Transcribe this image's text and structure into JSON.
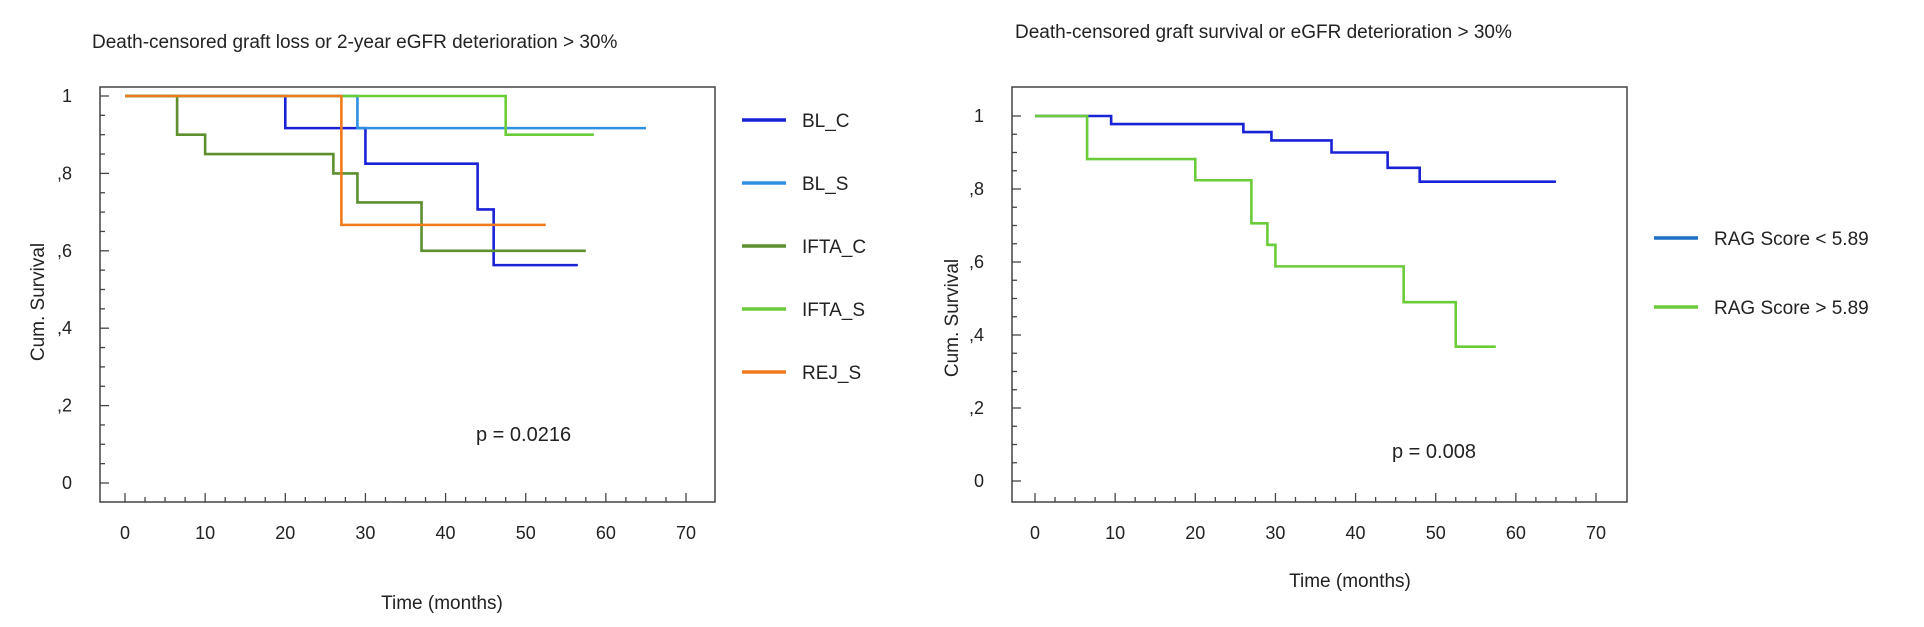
{
  "chart_data": [
    {
      "type": "line",
      "step": true,
      "title": "Death-censored graft loss or 2-year eGFR deterioration > 30%",
      "xlabel": "Time (months)",
      "ylabel": "Cum. Survival",
      "xlim": [
        0,
        70
      ],
      "ylim": [
        0,
        1
      ],
      "x_ticks": [
        0,
        10,
        20,
        30,
        40,
        50,
        60,
        70
      ],
      "x_tick_labels": [
        "0",
        "10",
        "20",
        "30",
        "40",
        "50",
        "60",
        "70"
      ],
      "y_ticks": [
        0,
        0.2,
        0.4,
        0.6,
        0.8,
        1
      ],
      "y_tick_labels": [
        "0",
        ",2",
        ",4",
        ",6",
        ",8",
        "1"
      ],
      "grid": false,
      "legend_position": "right",
      "annotation": "p = 0.0216",
      "series": [
        {
          "name": "BL_C",
          "color": "#1a22d6",
          "x": [
            0,
            20,
            30,
            44,
            46,
            56.5
          ],
          "y": [
            1,
            0.917,
            0.825,
            0.707,
            0.563,
            0.563
          ]
        },
        {
          "name": "BL_S",
          "color": "#2f8fe0",
          "x": [
            0,
            29,
            65
          ],
          "y": [
            1,
            0.917,
            0.917
          ]
        },
        {
          "name": "IFTA_C",
          "color": "#5d8f2f",
          "x": [
            0,
            6.5,
            10,
            26,
            29,
            37,
            57.5
          ],
          "y": [
            1,
            0.9,
            0.85,
            0.8,
            0.725,
            0.6,
            0.6
          ]
        },
        {
          "name": "IFTA_S",
          "color": "#6bcc3a",
          "x": [
            0,
            47.5,
            58.5
          ],
          "y": [
            1,
            0.9,
            0.9
          ]
        },
        {
          "name": "REJ_S",
          "color": "#f07a1e",
          "x": [
            0,
            27,
            52.5
          ],
          "y": [
            1,
            0.667,
            0.667
          ]
        }
      ]
    },
    {
      "type": "line",
      "step": true,
      "title": "Death-censored graft survival or eGFR deterioration > 30%",
      "xlabel": "Time (months)",
      "ylabel": "Cum. Survival",
      "xlim": [
        0,
        70
      ],
      "ylim": [
        0,
        1
      ],
      "x_ticks": [
        0,
        10,
        20,
        30,
        40,
        50,
        60,
        70
      ],
      "x_tick_labels": [
        "0",
        "10",
        "20",
        "30",
        "40",
        "50",
        "60",
        "70"
      ],
      "y_ticks": [
        0,
        0.2,
        0.4,
        0.6,
        0.8,
        1
      ],
      "y_tick_labels": [
        "0",
        ",2",
        ",4",
        ",6",
        ",8",
        "1"
      ],
      "grid": false,
      "legend_position": "right",
      "annotation": "p = 0.008",
      "series": [
        {
          "name": "RAG Score < 5.89",
          "legend_color": "#1f6fc4",
          "color": "#1a22d6",
          "x": [
            0,
            9.5,
            26,
            29.5,
            37,
            44,
            48,
            65
          ],
          "y": [
            1,
            0.978,
            0.956,
            0.933,
            0.9,
            0.858,
            0.82,
            0.82
          ]
        },
        {
          "name": "RAG Score > 5.89",
          "legend_color": "#6bcc3a",
          "color": "#6bcc3a",
          "x": [
            0,
            6.5,
            20,
            27,
            29,
            30,
            46,
            52.5,
            57.5
          ],
          "y": [
            1,
            0.882,
            0.824,
            0.706,
            0.647,
            0.588,
            0.49,
            0.368,
            0.368
          ]
        }
      ]
    }
  ]
}
